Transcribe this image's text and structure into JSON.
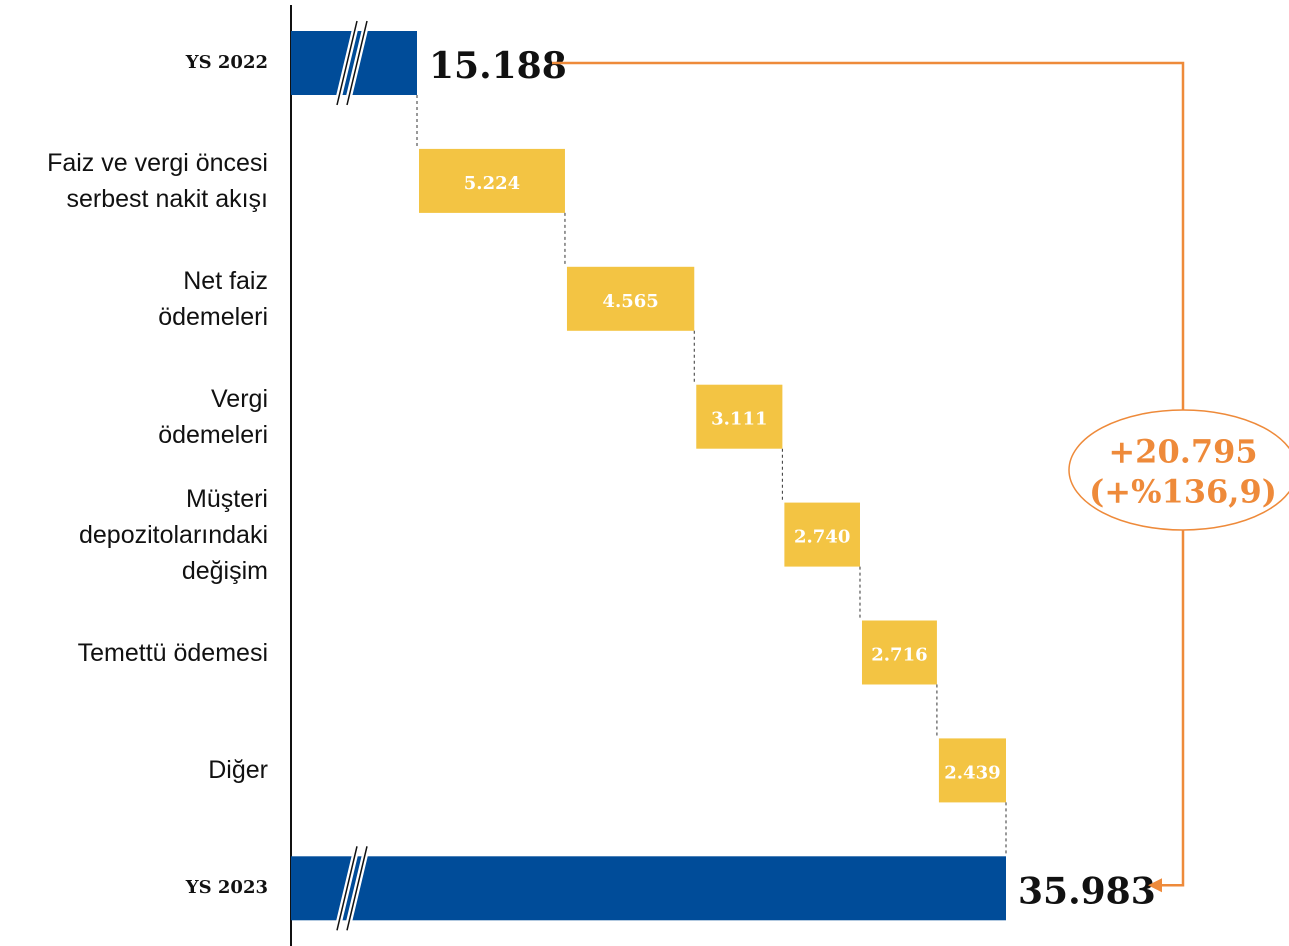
{
  "chart_data": {
    "type": "waterfall",
    "categories": [
      "YS 2022",
      "Faiz ve vergi öncesi\nserbest nakit akışı",
      "Net faiz\nödemeleri",
      "Vergi\nödemeleri",
      "Müşteri\ndepozitolarındaki\ndeğişim",
      "Temettü ödemesi",
      "Diğer",
      "YS 2023"
    ],
    "values": [
      15188,
      5224,
      4565,
      3111,
      2740,
      2716,
      2439,
      35983
    ],
    "value_labels": [
      "15.188",
      "5.224",
      "4.565",
      "3.111",
      "2.740",
      "2.716",
      "2.439",
      "35.983"
    ],
    "kinds": [
      "total",
      "step",
      "step",
      "step",
      "step",
      "step",
      "step",
      "total"
    ],
    "total_color": "#004c99",
    "step_color": "#f3c443",
    "annotation": [
      "+20.795",
      "(+%136,9)"
    ],
    "annotation_color": "#ee8a3a"
  }
}
